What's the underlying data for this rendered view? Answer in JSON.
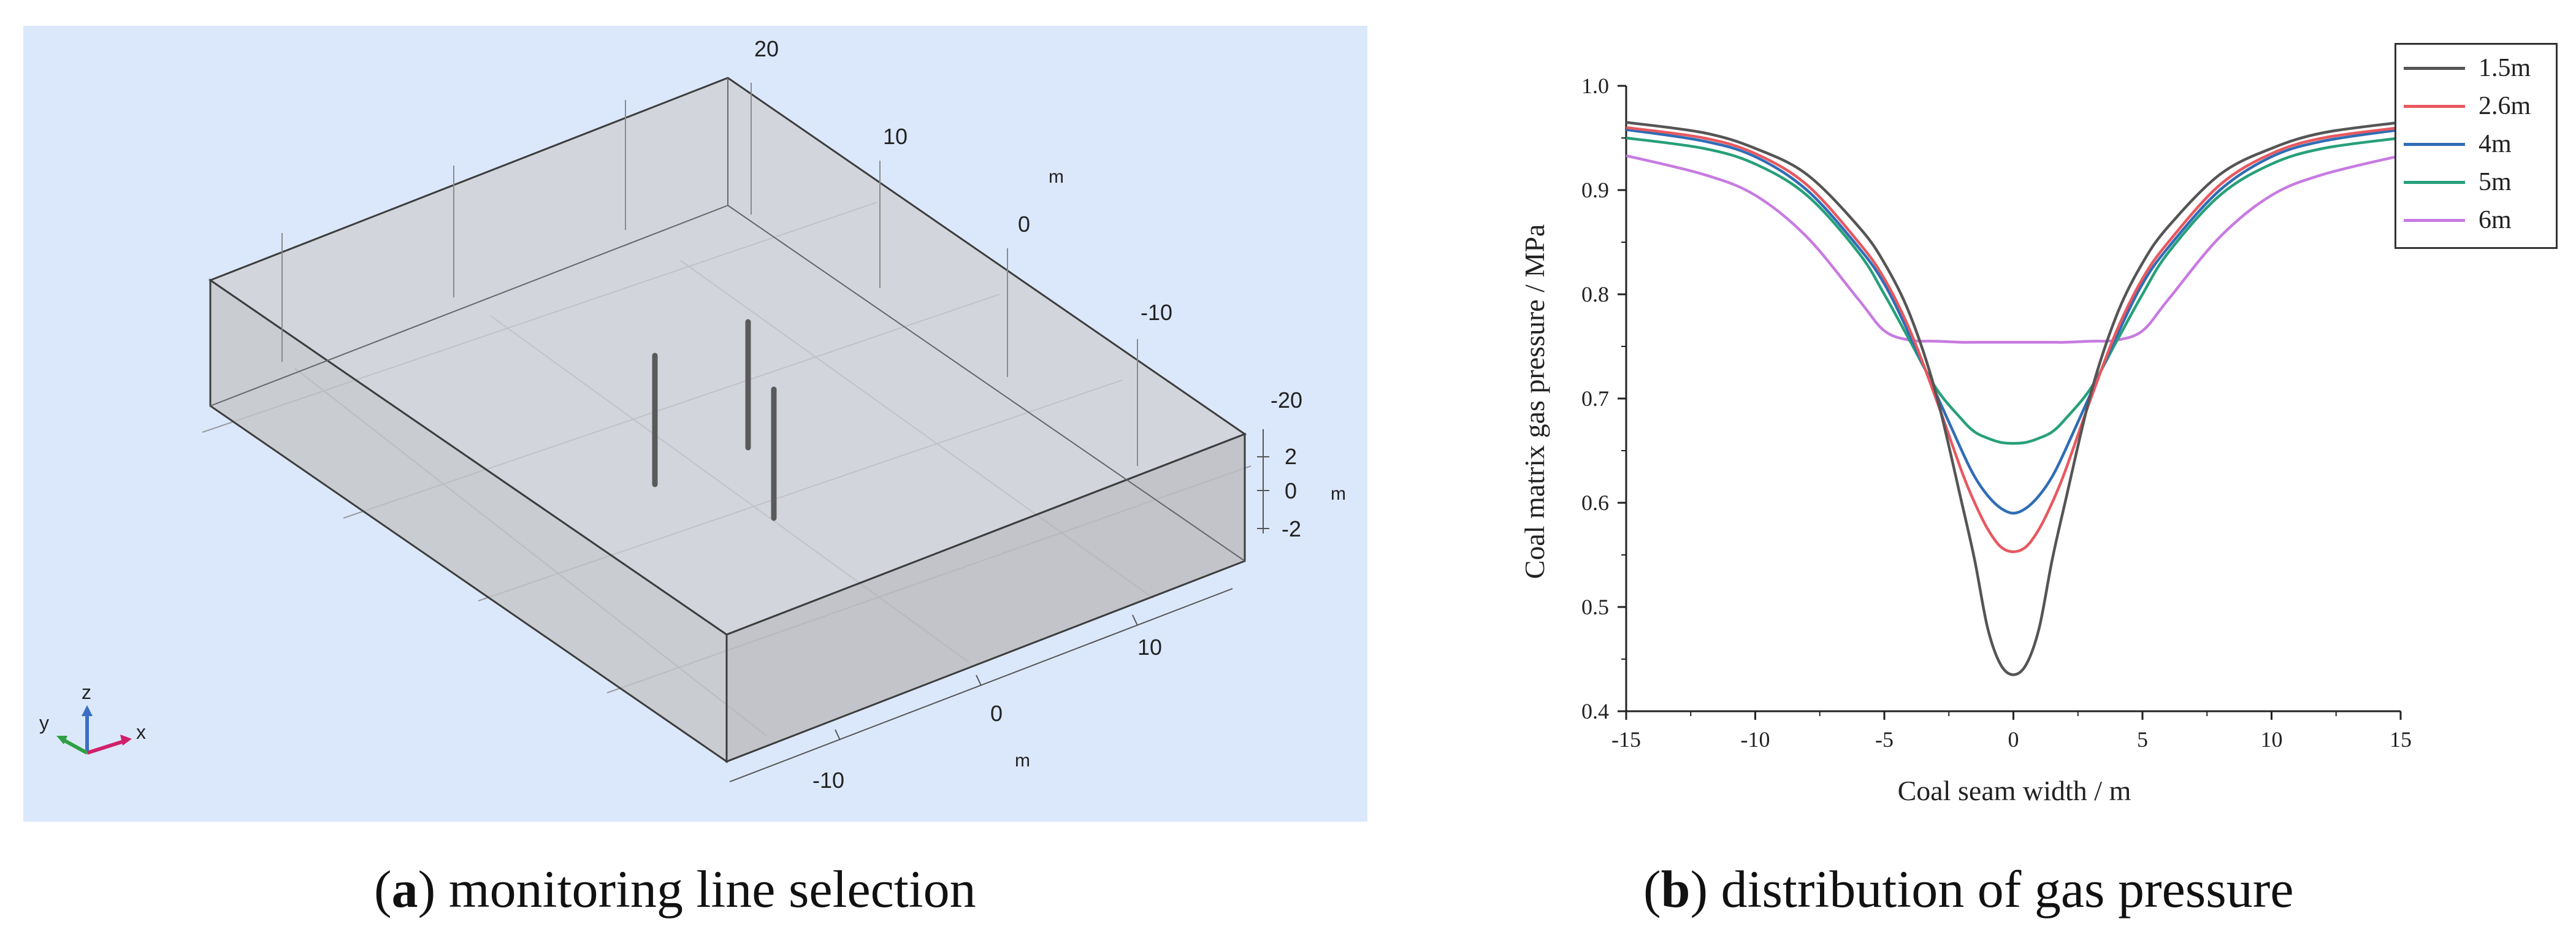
{
  "panel_a": {
    "caption_letter": "a",
    "caption_text": "monitoring line selection",
    "axis_y_ticks": [
      "20",
      "10",
      "0",
      "-10",
      "-20"
    ],
    "axis_y_unit": "m",
    "axis_z_ticks": [
      "2",
      "0",
      "-2"
    ],
    "axis_z_unit": "m",
    "axis_x_ticks": [
      "10",
      "0",
      "-10"
    ],
    "axis_x_unit": "m",
    "triad": {
      "x": "x",
      "y": "y",
      "z": "z"
    },
    "colors": {
      "background": "#dde9fb",
      "box": "#c8c8c8",
      "triad_x": "#d0206a",
      "triad_y": "#2ea043",
      "triad_z": "#3a6fc4"
    }
  },
  "panel_b": {
    "caption_letter": "b",
    "caption_text": "distribution of gas pressure"
  },
  "chart_data": {
    "type": "line",
    "title": "",
    "xlabel": "Coal seam width / m",
    "ylabel": "Coal matrix gas pressure / MPa",
    "xlim": [
      -15,
      15
    ],
    "ylim": [
      0.4,
      1.0
    ],
    "xticks": [
      -15,
      -10,
      -5,
      0,
      5,
      10,
      15
    ],
    "xtick_labels": [
      "-15",
      "-10",
      "-5",
      "0",
      "5",
      "10",
      "15"
    ],
    "yticks": [
      0.4,
      0.5,
      0.6,
      0.7,
      0.8,
      0.9,
      1.0
    ],
    "ytick_labels": [
      "0.4",
      "0.5",
      "0.6",
      "0.7",
      "0.8",
      "0.9",
      "1.0"
    ],
    "legend_position": "top-right",
    "x": [
      -15,
      -12,
      -10,
      -8,
      -6,
      -5,
      -4,
      -3,
      -2,
      -1.5,
      -1,
      -0.5,
      0,
      0.5,
      1,
      1.5,
      2,
      3,
      4,
      5,
      6,
      8,
      10,
      12,
      15
    ],
    "series": [
      {
        "name": "1.5m",
        "color": "#555555",
        "values": [
          0.965,
          0.955,
          0.94,
          0.915,
          0.865,
          0.83,
          0.78,
          0.705,
          0.6,
          0.545,
          0.48,
          0.445,
          0.435,
          0.445,
          0.48,
          0.545,
          0.6,
          0.705,
          0.78,
          0.83,
          0.865,
          0.915,
          0.94,
          0.955,
          0.965
        ]
      },
      {
        "name": "2.6m",
        "color": "#e8585f",
        "values": [
          0.96,
          0.95,
          0.935,
          0.905,
          0.85,
          0.815,
          0.765,
          0.7,
          0.63,
          0.6,
          0.575,
          0.558,
          0.553,
          0.558,
          0.575,
          0.6,
          0.63,
          0.7,
          0.765,
          0.815,
          0.85,
          0.905,
          0.935,
          0.95,
          0.96
        ]
      },
      {
        "name": "4m",
        "color": "#2f6db5",
        "values": [
          0.958,
          0.947,
          0.932,
          0.9,
          0.845,
          0.81,
          0.76,
          0.705,
          0.65,
          0.625,
          0.607,
          0.595,
          0.59,
          0.595,
          0.607,
          0.625,
          0.65,
          0.705,
          0.76,
          0.81,
          0.845,
          0.9,
          0.932,
          0.947,
          0.958
        ]
      },
      {
        "name": "5m",
        "color": "#27a07a",
        "values": [
          0.95,
          0.94,
          0.925,
          0.895,
          0.84,
          0.8,
          0.755,
          0.71,
          0.68,
          0.668,
          0.662,
          0.658,
          0.657,
          0.658,
          0.662,
          0.668,
          0.68,
          0.71,
          0.755,
          0.8,
          0.84,
          0.895,
          0.925,
          0.94,
          0.95
        ]
      },
      {
        "name": "6m",
        "color": "#c77be0",
        "values": [
          0.933,
          0.915,
          0.895,
          0.855,
          0.795,
          0.765,
          0.756,
          0.755,
          0.754,
          0.754,
          0.754,
          0.754,
          0.754,
          0.754,
          0.754,
          0.754,
          0.754,
          0.755,
          0.756,
          0.765,
          0.795,
          0.855,
          0.895,
          0.915,
          0.933
        ]
      }
    ]
  }
}
